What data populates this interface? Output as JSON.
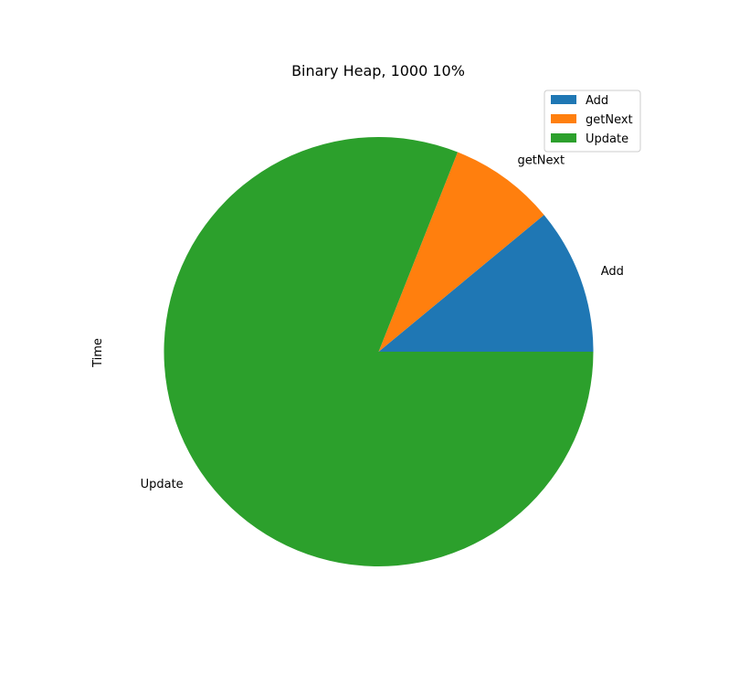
{
  "chart_data": {
    "type": "pie",
    "title": "Binary Heap, 1000 10%",
    "ylabel": "Time",
    "categories": [
      "Add",
      "getNext",
      "Update"
    ],
    "values": [
      11.0,
      8.0,
      81.0
    ],
    "colors": [
      "#1f77b4",
      "#ff7f0e",
      "#2ca02c"
    ],
    "legend_position": "top-right",
    "start_angle_deg": 0,
    "direction": "counterclockwise"
  }
}
